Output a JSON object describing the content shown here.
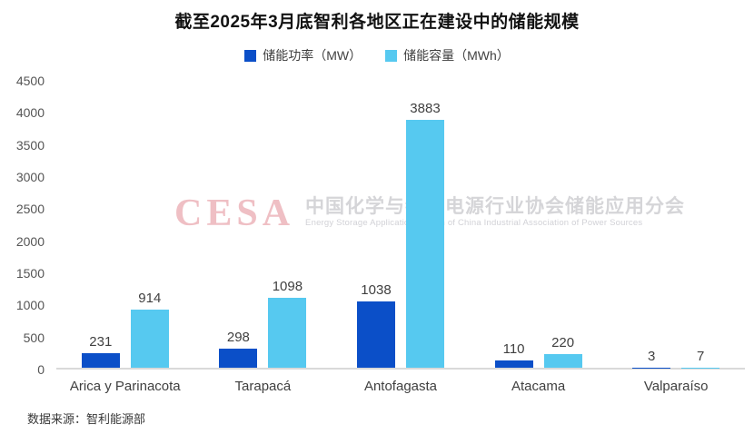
{
  "title": "截至2025年3月底智利各地区正在建设中的储能规模",
  "legend": [
    {
      "label": "储能功率（MW）",
      "color": "#0B4FC8"
    },
    {
      "label": "储能容量（MWh）",
      "color": "#56C9F0"
    }
  ],
  "source": "数据来源：智利能源部",
  "watermark": {
    "logo": "CESA",
    "cn": "中国化学与物理电源行业协会储能应用分会",
    "en": "Energy Storage Application Branch of China Industrial Association of Power Sources"
  },
  "chart_data": {
    "type": "bar",
    "title": "截至2025年3月底智利各地区正在建设中的储能规模",
    "categories": [
      "Arica y Parinacota",
      "Tarapacá",
      "Antofagasta",
      "Atacama",
      "Valparaíso"
    ],
    "series": [
      {
        "name": "储能功率（MW）",
        "color": "#0B4FC8",
        "values": [
          231,
          298,
          1038,
          110,
          3
        ]
      },
      {
        "name": "储能容量（MWh）",
        "color": "#56C9F0",
        "values": [
          914,
          1098,
          3883,
          220,
          7
        ]
      }
    ],
    "xlabel": "",
    "ylabel": "",
    "ylim": [
      0,
      4500
    ],
    "ytick_step": 500,
    "grid": false,
    "legend_position": "top",
    "data_labels": true,
    "source": "数据来源：智利能源部"
  }
}
